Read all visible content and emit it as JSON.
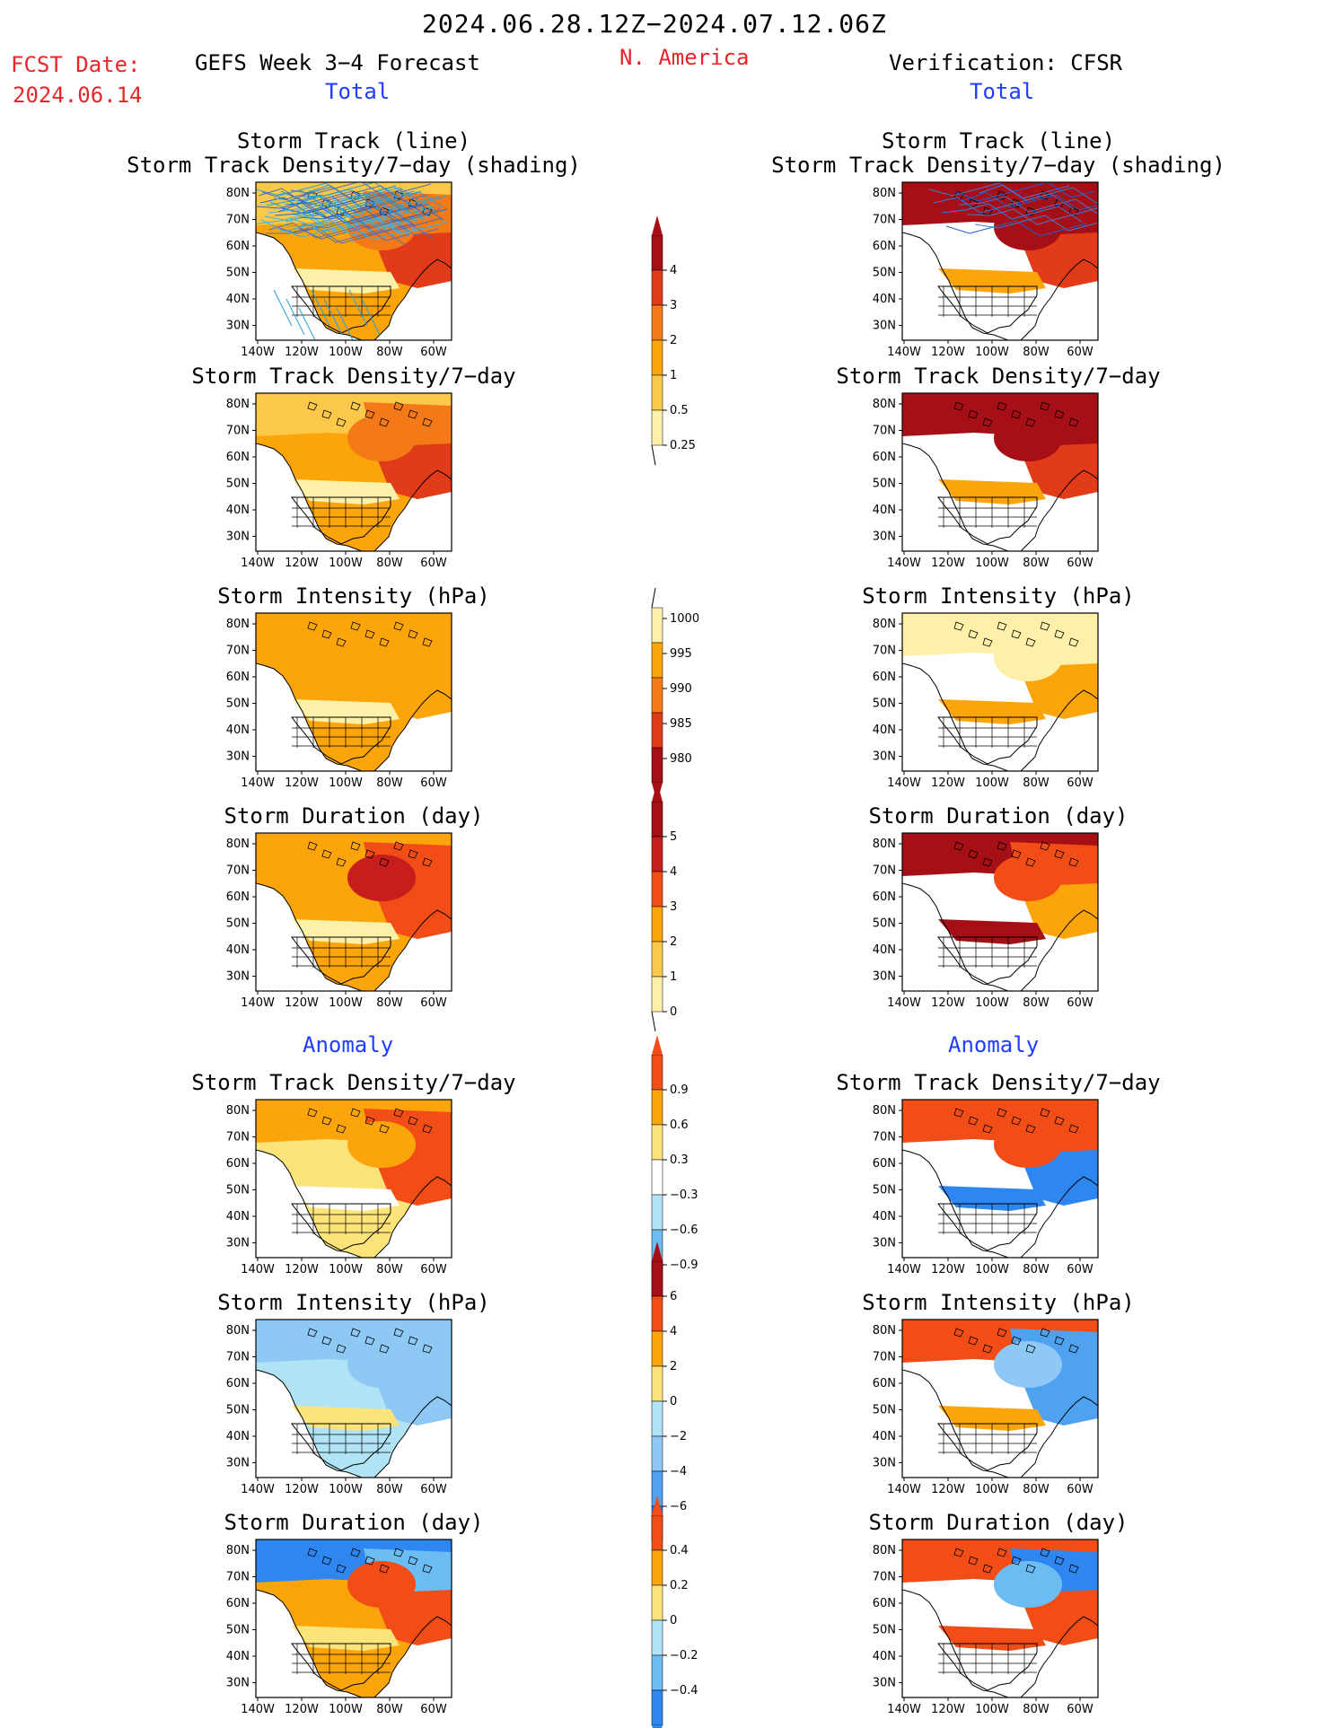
{
  "header": {
    "period": "2024.06.28.12Z−2024.07.12.06Z",
    "fcst_label": "FCST Date:",
    "fcst_date": "2024.06.14",
    "model": "GEFS Week 3−4 Forecast",
    "region": "N. America",
    "verification": "Verification: CFSR",
    "total_left": "Total",
    "total_right": "Total",
    "anomaly_left": "Anomaly",
    "anomaly_right": "Anomaly"
  },
  "axes": {
    "lat_labels": [
      "80N",
      "70N",
      "60N",
      "50N",
      "40N",
      "30N"
    ],
    "lon_labels": [
      "140W",
      "120W",
      "100W",
      "80W",
      "60W"
    ]
  },
  "panels": {
    "left": [
      {
        "title1": "Storm Track (line)",
        "title2": "Storm Track Density/7−day (shading)",
        "field": "track_fcst"
      },
      {
        "title1": "Storm Track Density/7−day",
        "title2": "",
        "field": "density_fcst"
      },
      {
        "title1": "Storm Intensity (hPa)",
        "title2": "",
        "field": "intensity_fcst"
      },
      {
        "title1": "Storm Duration (day)",
        "title2": "",
        "field": "duration_fcst"
      },
      {
        "title1": "Storm Track Density/7−day",
        "title2": "",
        "field": "density_anom_fcst"
      },
      {
        "title1": "Storm Intensity (hPa)",
        "title2": "",
        "field": "intensity_anom_fcst"
      },
      {
        "title1": "Storm Duration (day)",
        "title2": "",
        "field": "duration_anom_fcst"
      }
    ],
    "right": [
      {
        "title1": "Storm Track (line)",
        "title2": "Storm Track Density/7−day (shading)",
        "field": "track_obs"
      },
      {
        "title1": "Storm Track Density/7−day",
        "title2": "",
        "field": "density_obs"
      },
      {
        "title1": "Storm Intensity (hPa)",
        "title2": "",
        "field": "intensity_obs"
      },
      {
        "title1": "Storm Duration (day)",
        "title2": "",
        "field": "duration_obs"
      },
      {
        "title1": "Storm Track Density/7−day",
        "title2": "",
        "field": "density_anom_obs"
      },
      {
        "title1": "Storm Intensity (hPa)",
        "title2": "",
        "field": "intensity_anom_obs"
      },
      {
        "title1": "Storm Duration (day)",
        "title2": "",
        "field": "duration_anom_obs"
      }
    ]
  },
  "colorbars": [
    {
      "name": "density",
      "labels": [
        "4",
        "3",
        "2",
        "1",
        "0.5",
        "0.25"
      ],
      "colors": [
        "#a50f15",
        "#e23b1a",
        "#f47a17",
        "#fca50a",
        "#fcc84a",
        "#fdf0a8"
      ]
    },
    {
      "name": "intensity",
      "labels": [
        "1000",
        "995",
        "990",
        "985",
        "980"
      ],
      "colors": [
        "#fdf0a8",
        "#fca50a",
        "#f47a17",
        "#e23b1a",
        "#a50f15"
      ]
    },
    {
      "name": "duration",
      "labels": [
        "5",
        "4",
        "3",
        "2",
        "1",
        "0"
      ],
      "colors": [
        "#a50f15",
        "#c81d1d",
        "#f24d17",
        "#fca50a",
        "#fcc84a",
        "#fdf0a8"
      ]
    },
    {
      "name": "density_anom",
      "labels": [
        "0.9",
        "0.6",
        "0.3",
        "−0.3",
        "−0.6",
        "−0.9"
      ],
      "colors": [
        "#f24d17",
        "#fca50a",
        "#fde47a",
        "#ffffff",
        "#b0e4f5",
        "#6bbcf2",
        "#2e86f0"
      ]
    },
    {
      "name": "intensity_anom",
      "labels": [
        "6",
        "4",
        "2",
        "0",
        "−2",
        "−4",
        "−6"
      ],
      "colors": [
        "#a50f15",
        "#f24d17",
        "#fca50a",
        "#fde47a",
        "#b0e4f5",
        "#8ec8f5",
        "#4fa2f0",
        "#2e6fea"
      ]
    },
    {
      "name": "duration_anom",
      "labels": [
        "0.4",
        "0.2",
        "0",
        "−0.2",
        "−0.4"
      ],
      "colors": [
        "#f24d17",
        "#fca50a",
        "#fde47a",
        "#b0e4f5",
        "#6bbcf2",
        "#2e86f0"
      ]
    }
  ],
  "fields": {
    "track_fcst": {
      "base": "#fca50a",
      "n": "#fcc84a",
      "ne": "#f47a17",
      "e": "#e23b1a",
      "s": "#fdf0a8",
      "center": "#f47a17"
    },
    "track_obs": {
      "base": "#ffffff",
      "n": "#a50f15",
      "ne": "#a50f15",
      "e": "#e23b1a",
      "s": "#fca50a",
      "center": "#a50f15"
    },
    "density_fcst": {
      "base": "#fca50a",
      "n": "#fcc84a",
      "ne": "#f47a17",
      "e": "#e23b1a",
      "s": "#fdf0a8",
      "center": "#f47a17"
    },
    "density_obs": {
      "base": "#ffffff",
      "n": "#a50f15",
      "ne": "#a50f15",
      "e": "#e23b1a",
      "s": "#fca50a",
      "center": "#a50f15"
    },
    "intensity_fcst": {
      "base": "#fca50a",
      "n": "#fca50a",
      "ne": "#fca50a",
      "e": "#fca50a",
      "s": "#fdf0a8",
      "center": "#fca50a"
    },
    "intensity_obs": {
      "base": "#ffffff",
      "n": "#fdf0a8",
      "ne": "#fdf0a8",
      "e": "#fca50a",
      "s": "#fca50a",
      "center": "#fdf0a8"
    },
    "duration_fcst": {
      "base": "#fca50a",
      "n": "#fca50a",
      "ne": "#f24d17",
      "e": "#f24d17",
      "s": "#fdf0a8",
      "center": "#c81d1d"
    },
    "duration_obs": {
      "base": "#ffffff",
      "n": "#a50f15",
      "ne": "#f24d17",
      "e": "#fca50a",
      "s": "#a50f15",
      "center": "#f24d17"
    },
    "density_anom_fcst": {
      "base": "#fde47a",
      "n": "#fca50a",
      "ne": "#f24d17",
      "e": "#f24d17",
      "s": "#ffffff",
      "center": "#fca50a"
    },
    "density_anom_obs": {
      "base": "#ffffff",
      "n": "#f24d17",
      "ne": "#f24d17",
      "e": "#2e86f0",
      "s": "#2e86f0",
      "center": "#f24d17"
    },
    "intensity_anom_fcst": {
      "base": "#b0e4f5",
      "n": "#8ec8f5",
      "ne": "#8ec8f5",
      "e": "#8ec8f5",
      "s": "#fde47a",
      "center": "#8ec8f5"
    },
    "intensity_anom_obs": {
      "base": "#ffffff",
      "n": "#f24d17",
      "ne": "#4fa2f0",
      "e": "#4fa2f0",
      "s": "#fca50a",
      "center": "#8ec8f5"
    },
    "duration_anom_fcst": {
      "base": "#fca50a",
      "n": "#2e86f0",
      "ne": "#6bbcf2",
      "e": "#f24d17",
      "s": "#fde47a",
      "center": "#f24d17"
    },
    "duration_anom_obs": {
      "base": "#ffffff",
      "n": "#f24d17",
      "ne": "#2e86f0",
      "e": "#f24d17",
      "s": "#f24d17",
      "center": "#6bbcf2"
    }
  }
}
